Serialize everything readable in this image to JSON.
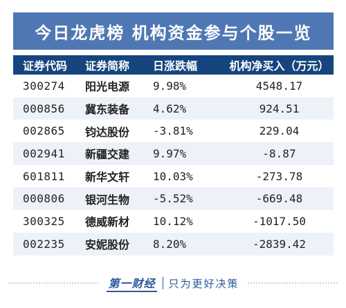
{
  "title": "今日龙虎榜 机构资金参与个股一览",
  "table": {
    "headers": [
      "证券代码",
      "证券简称",
      "日涨跌幅",
      "机构净买入（万元）"
    ],
    "rows": [
      {
        "code": "300274",
        "name": "阳光电源",
        "change": "9.98%",
        "net_buy": "4548.17"
      },
      {
        "code": "000856",
        "name": "冀东装备",
        "change": "4.62%",
        "net_buy": "924.51"
      },
      {
        "code": "002865",
        "name": "钧达股份",
        "change": "-3.81%",
        "net_buy": "229.04"
      },
      {
        "code": "002941",
        "name": "新疆交建",
        "change": "9.97%",
        "net_buy": "-8.87"
      },
      {
        "code": "601811",
        "name": "新华文轩",
        "change": "10.03%",
        "net_buy": "-273.78"
      },
      {
        "code": "000806",
        "name": "银河生物",
        "change": "-5.52%",
        "net_buy": "-669.48"
      },
      {
        "code": "300325",
        "name": "德威新材",
        "change": "10.12%",
        "net_buy": "-1017.50"
      },
      {
        "code": "002235",
        "name": "安妮股份",
        "change": "8.20%",
        "net_buy": "-2839.42"
      }
    ]
  },
  "footer": {
    "logo_text": "第一财经",
    "slogan": "只为更好决策"
  },
  "colors": {
    "title_bg": "#4f77b3",
    "header_bg": "#16457e",
    "positive": "#e5171d",
    "negative": "#1f9f45"
  }
}
